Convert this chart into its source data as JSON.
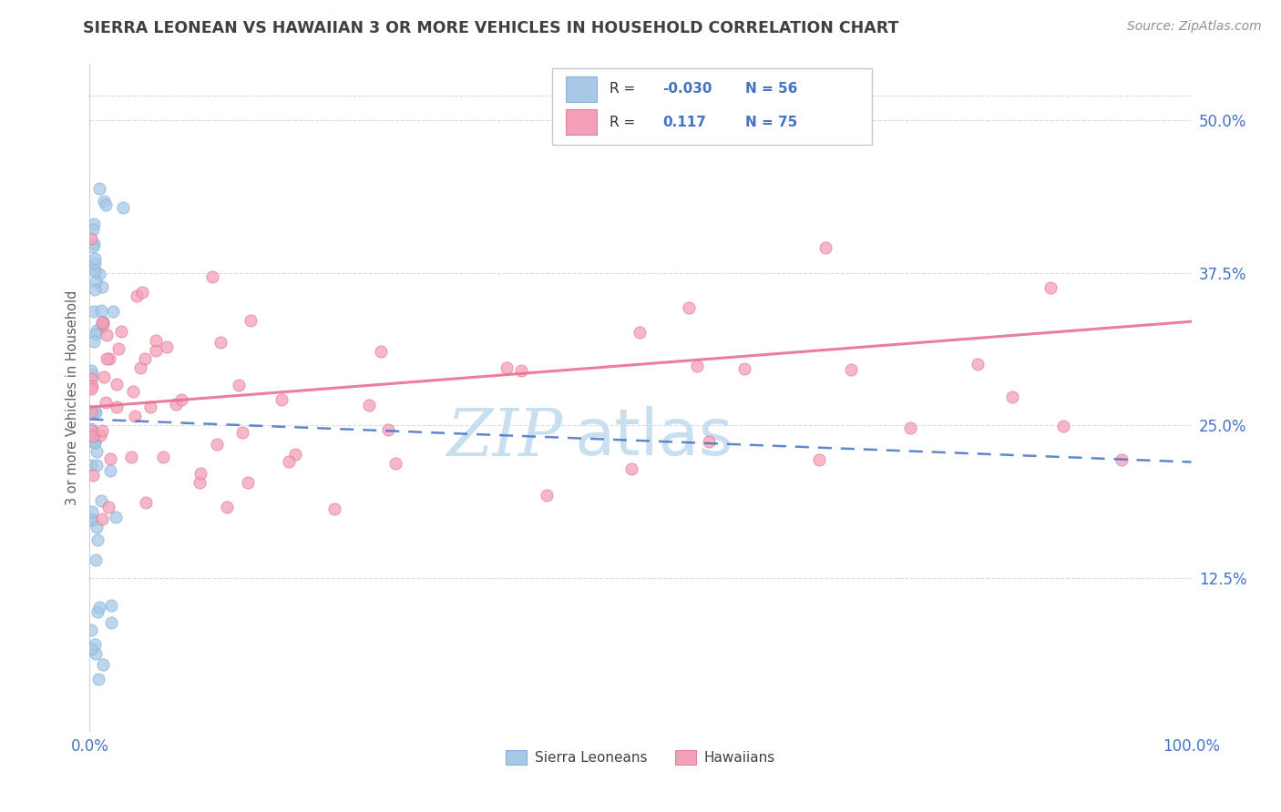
{
  "title": "SIERRA LEONEAN VS HAWAIIAN 3 OR MORE VEHICLES IN HOUSEHOLD CORRELATION CHART",
  "source": "Source: ZipAtlas.com",
  "ylabel": "3 or more Vehicles in Household",
  "x_tick_labels": [
    "0.0%",
    "100.0%"
  ],
  "y_tick_labels": [
    "12.5%",
    "25.0%",
    "37.5%",
    "50.0%"
  ],
  "y_ticks": [
    0.125,
    0.25,
    0.375,
    0.5
  ],
  "blue_scatter_color": "#a8c8e8",
  "blue_edge_color": "#7aafd0",
  "pink_scatter_color": "#f4a0b8",
  "pink_edge_color": "#e07090",
  "blue_line_color": "#4472c4",
  "pink_line_color": "#e87090",
  "title_color": "#404040",
  "source_color": "#909090",
  "tick_color": "#4472c4",
  "grid_color": "#d8d8d8",
  "legend_r1_val": "-0.030",
  "legend_n1": "N = 56",
  "legend_r2_val": "0.117",
  "legend_n2": "N = 75",
  "watermark_zip": "ZIP",
  "watermark_atlas": "atlas",
  "watermark_color": "#c8dff0"
}
